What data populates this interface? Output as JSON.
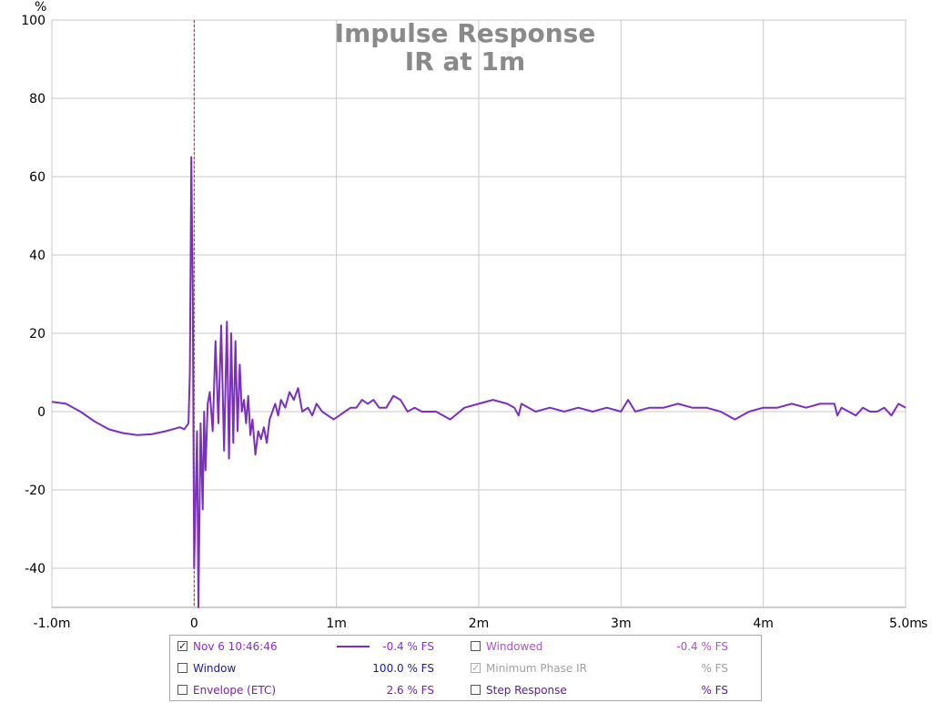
{
  "chart_data": {
    "type": "line",
    "title": "Impulse Response",
    "subtitle": "IR at 1m",
    "y_unit": "%",
    "x_unit": "s",
    "xlim": [
      -1.0,
      5.0
    ],
    "ylim": [
      -50,
      100
    ],
    "xticks": [
      {
        "value": -1.0,
        "label": "-1.0m"
      },
      {
        "value": 0,
        "label": "0"
      },
      {
        "value": 1,
        "label": "1m"
      },
      {
        "value": 2,
        "label": "2m"
      },
      {
        "value": 3,
        "label": "3m"
      },
      {
        "value": 4,
        "label": "4m"
      },
      {
        "value": 5,
        "label": "5.0m"
      }
    ],
    "yticks": [
      100,
      80,
      60,
      40,
      20,
      0,
      -20,
      -40
    ],
    "grid": true,
    "marker_x": 0,
    "series": [
      {
        "name": "Nov 6 10:46:46",
        "color": "#7b2fbe",
        "x": [
          -1.0,
          -0.9,
          -0.8,
          -0.7,
          -0.6,
          -0.5,
          -0.4,
          -0.3,
          -0.2,
          -0.1,
          -0.07,
          -0.04,
          -0.03,
          -0.02,
          -0.01,
          0.0,
          0.02,
          0.03,
          0.045,
          0.06,
          0.07,
          0.08,
          0.095,
          0.11,
          0.13,
          0.15,
          0.17,
          0.19,
          0.21,
          0.23,
          0.245,
          0.26,
          0.275,
          0.29,
          0.305,
          0.32,
          0.335,
          0.35,
          0.365,
          0.38,
          0.395,
          0.41,
          0.43,
          0.45,
          0.47,
          0.49,
          0.51,
          0.53,
          0.55,
          0.57,
          0.59,
          0.61,
          0.64,
          0.67,
          0.7,
          0.73,
          0.76,
          0.8,
          0.83,
          0.86,
          0.9,
          0.94,
          0.98,
          1.02,
          1.06,
          1.1,
          1.14,
          1.18,
          1.22,
          1.26,
          1.3,
          1.35,
          1.4,
          1.45,
          1.5,
          1.55,
          1.6,
          1.7,
          1.8,
          1.9,
          2.0,
          2.1,
          2.2,
          2.25,
          2.28,
          2.3,
          2.35,
          2.4,
          2.5,
          2.6,
          2.7,
          2.8,
          2.9,
          3.0,
          3.05,
          3.1,
          3.2,
          3.3,
          3.4,
          3.5,
          3.6,
          3.7,
          3.8,
          3.9,
          4.0,
          4.1,
          4.2,
          4.3,
          4.4,
          4.5,
          4.52,
          4.55,
          4.6,
          4.65,
          4.7,
          4.75,
          4.8,
          4.85,
          4.9,
          4.95,
          5.0
        ],
        "y": [
          2.5,
          2.0,
          0,
          -2.5,
          -4.5,
          -5.5,
          -6,
          -5.8,
          -5,
          -4,
          -4.5,
          -3,
          10,
          65,
          30,
          -40,
          -5,
          -50,
          -3,
          -25,
          0,
          -15,
          2,
          5,
          -5,
          18,
          -3,
          22,
          -10,
          23,
          -12,
          20,
          -8,
          18,
          -5,
          12,
          0,
          3,
          -3,
          4,
          -6,
          -2,
          -11,
          -5,
          -7,
          -4,
          -8,
          -2,
          0,
          2,
          -1,
          3,
          1,
          5,
          3,
          6,
          0,
          1,
          -1,
          2,
          0,
          -1,
          -2,
          -1,
          0,
          1,
          1,
          3,
          2,
          3,
          1,
          1,
          4,
          3,
          0,
          1,
          0,
          0,
          -2,
          1,
          2,
          3,
          2,
          1,
          -1,
          2,
          1,
          0,
          1,
          0,
          1,
          0,
          1,
          0,
          3,
          0,
          1,
          1,
          2,
          1,
          1,
          0,
          -2,
          0,
          1,
          1,
          2,
          1,
          2,
          2,
          -1,
          1,
          0,
          -1,
          1,
          0,
          0,
          1,
          -1,
          2,
          1
        ]
      }
    ]
  },
  "legend": {
    "items": [
      {
        "label": "Nov 6 10:46:46",
        "value": "-0.4 % FS",
        "checked": true,
        "color": "#8a2be2",
        "value_color": "#8a2be2",
        "enabled": true
      },
      {
        "label": "Window",
        "value": "100.0 % FS",
        "checked": false,
        "color": "#1a1aa0",
        "value_color": "#1a1aa0",
        "enabled": true
      },
      {
        "label": "Envelope (ETC)",
        "value": "2.6 % FS",
        "checked": false,
        "color": "#7a1fa2",
        "value_color": "#7a1fa2",
        "enabled": true
      },
      {
        "label": "Windowed",
        "value": "-0.4 % FS",
        "checked": false,
        "color": "#b24fd6",
        "value_color": "#b24fd6",
        "enabled": true
      },
      {
        "label": "Minimum Phase IR",
        "value": "% FS",
        "checked": true,
        "color": "#a0a0a0",
        "value_color": "#a0a0a0",
        "enabled": false
      },
      {
        "label": "Step Response",
        "value": "% FS",
        "checked": false,
        "color": "#5b1a8c",
        "value_color": "#5b1a8c",
        "enabled": true
      }
    ]
  }
}
